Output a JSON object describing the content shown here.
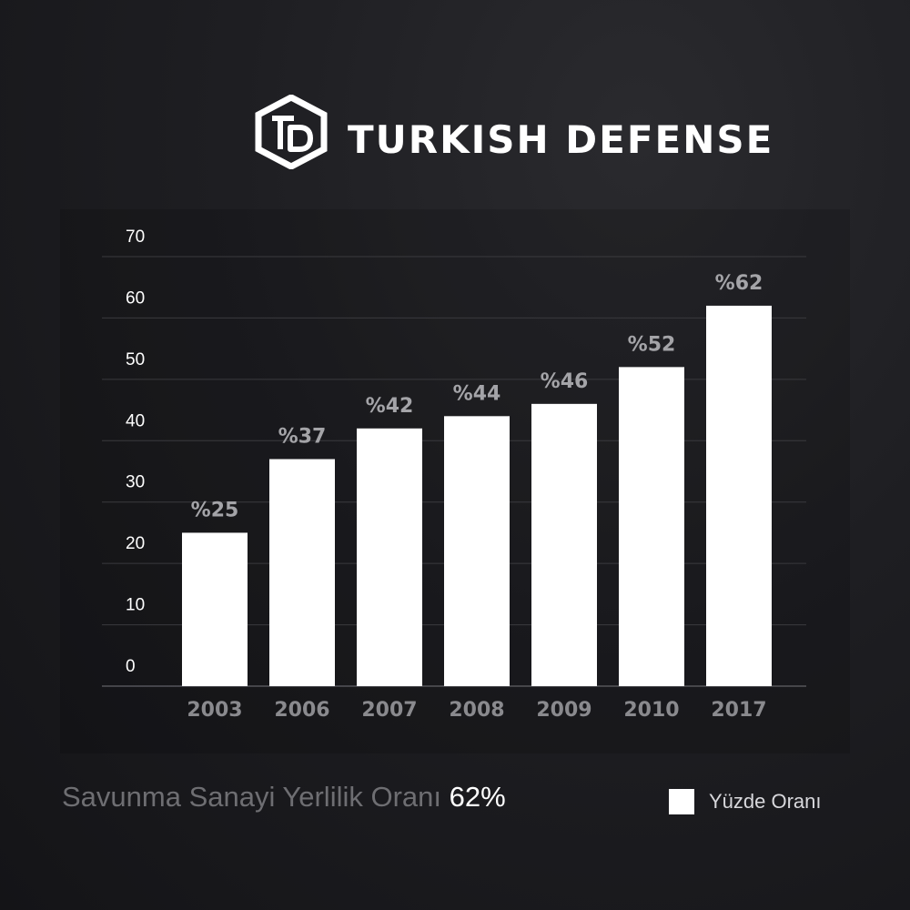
{
  "brand": {
    "name": "TURKISH DEFENSE",
    "logo_text": "TD"
  },
  "chart_data": {
    "type": "bar",
    "categories": [
      "2003",
      "2006",
      "2007",
      "2008",
      "2009",
      "2010",
      "2017"
    ],
    "series": [
      {
        "name": "Yüzde Oranı",
        "values": [
          25,
          37,
          42,
          44,
          46,
          52,
          62
        ]
      }
    ],
    "data_labels": [
      "%25",
      "%37",
      "%42",
      "%44",
      "%46",
      "%52",
      "%62"
    ],
    "yticks": [
      0,
      10,
      20,
      30,
      40,
      50,
      60,
      70
    ],
    "ylim": [
      0,
      70
    ],
    "grid": true,
    "legend_position": "bottom-right",
    "colors": {
      "bar": "#ffffff",
      "grid": "#3a3a3e"
    }
  },
  "footer": {
    "caption": "Savunma Sanayi Yerlilik Oranı",
    "value": "62%"
  },
  "legend": {
    "label": "Yüzde Oranı"
  }
}
